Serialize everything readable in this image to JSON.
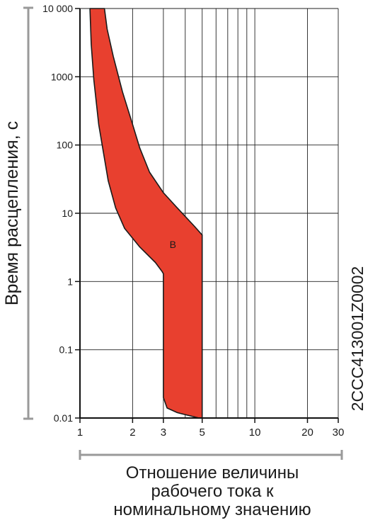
{
  "chart_data": {
    "type": "area",
    "x_scale": "log",
    "y_scale": "log",
    "xlim": [
      1,
      30
    ],
    "ylim": [
      0.01,
      10000
    ],
    "x_ticks": [
      {
        "value": 1,
        "label": "1"
      },
      {
        "value": 2,
        "label": "2"
      },
      {
        "value": 3,
        "label": "3"
      },
      {
        "value": 5,
        "label": "5"
      },
      {
        "value": 10,
        "label": "10"
      },
      {
        "value": 20,
        "label": "20"
      },
      {
        "value": 30,
        "label": "30"
      }
    ],
    "x_gridlines": [
      1,
      2,
      3,
      4,
      5,
      6,
      7,
      8,
      9,
      10,
      20,
      30
    ],
    "y_ticks": [
      {
        "value": 0.01,
        "label": "0.01"
      },
      {
        "value": 0.1,
        "label": "0.1"
      },
      {
        "value": 1,
        "label": "1"
      },
      {
        "value": 10,
        "label": "10"
      },
      {
        "value": 100,
        "label": "100"
      },
      {
        "value": 1000,
        "label": "1000"
      },
      {
        "value": 10000,
        "label": "10 000"
      }
    ],
    "grid": true,
    "ylabel": "Время расцепления, с",
    "xlabel_lines": [
      "Отношение величины",
      "рабочего тока к",
      "номинальному значению"
    ],
    "side_code": "2CCC413001Z0002",
    "curve_label": "B",
    "curve_label_point": {
      "x": 3.4,
      "y": 3.5
    },
    "band_color": "#e8402f",
    "band_outline": [
      {
        "x": 1.14,
        "y": 10000
      },
      {
        "x": 1.16,
        "y": 3000
      },
      {
        "x": 1.2,
        "y": 900
      },
      {
        "x": 1.28,
        "y": 200
      },
      {
        "x": 1.45,
        "y": 30
      },
      {
        "x": 1.6,
        "y": 12
      },
      {
        "x": 1.8,
        "y": 6
      },
      {
        "x": 2.2,
        "y": 3.2
      },
      {
        "x": 2.7,
        "y": 1.9
      },
      {
        "x": 2.95,
        "y": 1.4
      },
      {
        "x": 3.0,
        "y": 1.3
      },
      {
        "x": 3.0,
        "y": 0.02
      },
      {
        "x": 3.15,
        "y": 0.014
      },
      {
        "x": 3.6,
        "y": 0.012
      },
      {
        "x": 4.8,
        "y": 0.01
      },
      {
        "x": 5.0,
        "y": 0.01
      },
      {
        "x": 5.0,
        "y": 4.8
      },
      {
        "x": 4.5,
        "y": 6.5
      },
      {
        "x": 3.6,
        "y": 12
      },
      {
        "x": 3.0,
        "y": 20
      },
      {
        "x": 2.5,
        "y": 40
      },
      {
        "x": 2.2,
        "y": 90
      },
      {
        "x": 2.0,
        "y": 200
      },
      {
        "x": 1.75,
        "y": 600
      },
      {
        "x": 1.55,
        "y": 2000
      },
      {
        "x": 1.43,
        "y": 5000
      },
      {
        "x": 1.38,
        "y": 10000
      }
    ]
  }
}
